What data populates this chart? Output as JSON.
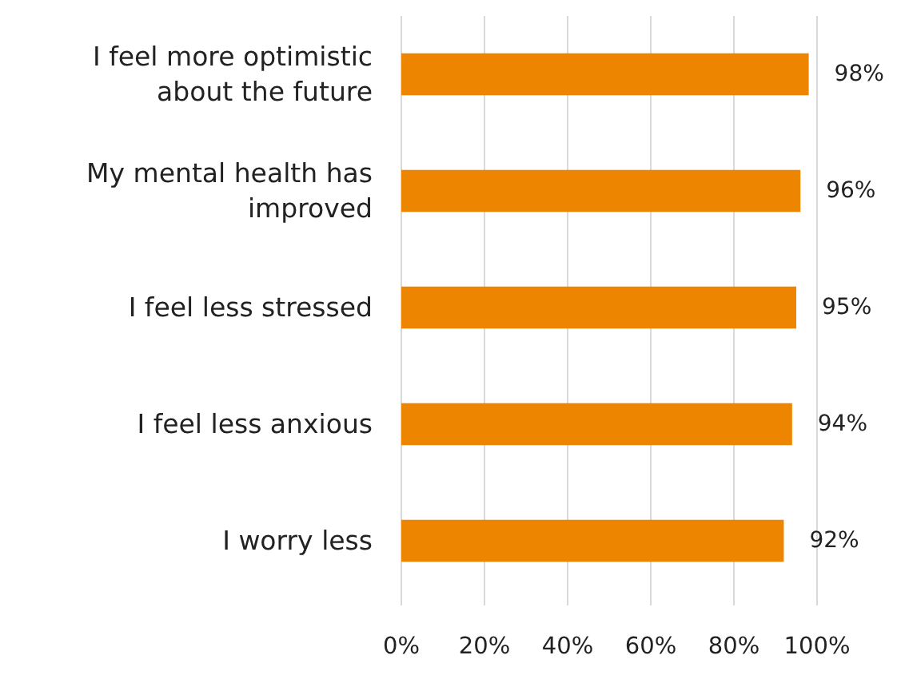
{
  "chart_data": {
    "type": "bar",
    "orientation": "horizontal",
    "categories": [
      "I feel more optimistic about the future",
      "My mental health has improved",
      "I feel less stressed",
      "I feel less anxious",
      "I worry less"
    ],
    "values": [
      98,
      96,
      95,
      94,
      92
    ],
    "value_labels": [
      "98%",
      "96%",
      "95%",
      "94%",
      "92%"
    ],
    "color": "#ee8500",
    "xlim": [
      0,
      100
    ],
    "xticks": [
      {
        "value": 0,
        "label": "0%"
      },
      {
        "value": 20,
        "label": "20%"
      },
      {
        "value": 40,
        "label": "40%"
      },
      {
        "value": 60,
        "label": "60%"
      },
      {
        "value": 80,
        "label": "80%"
      },
      {
        "value": 100,
        "label": "100%"
      }
    ],
    "grid": "x"
  }
}
